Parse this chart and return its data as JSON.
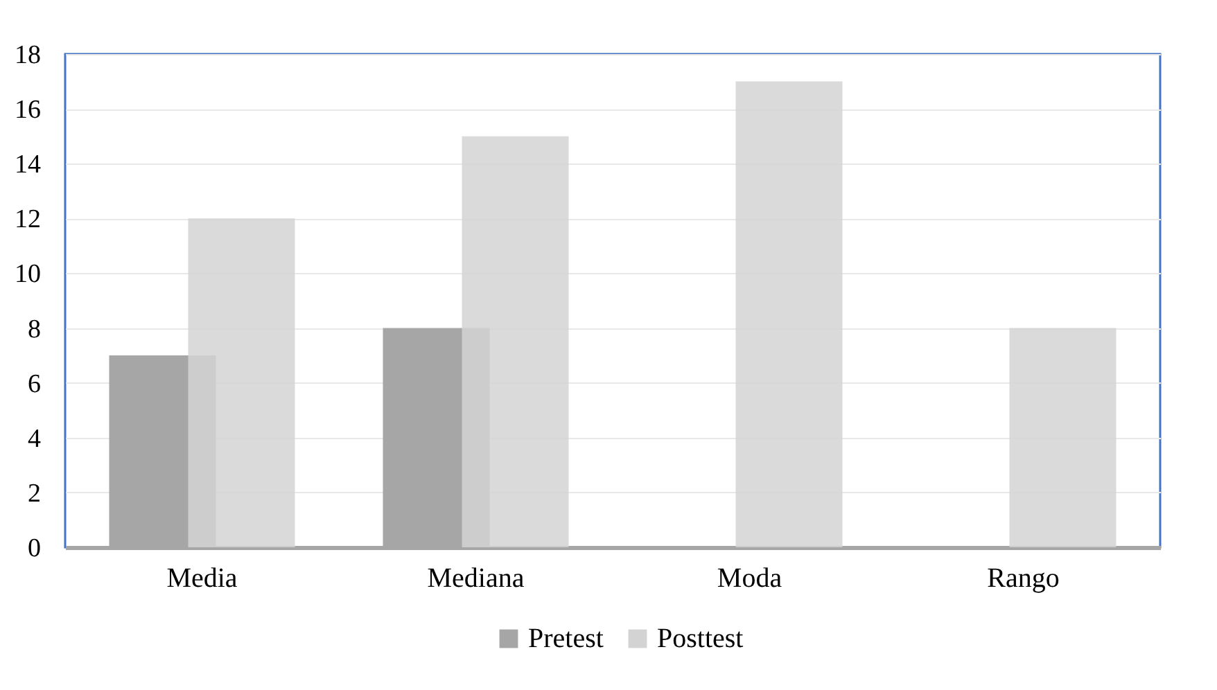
{
  "chart_data": {
    "type": "bar",
    "categories": [
      "Media",
      "Mediana",
      "Moda",
      "Rango"
    ],
    "series": [
      {
        "name": "Pretest",
        "color": "#a6a6a6",
        "values": [
          7,
          8,
          0,
          0
        ]
      },
      {
        "name": "Posttest",
        "color": "#d3d3d3",
        "values": [
          12,
          15,
          17,
          8
        ]
      }
    ],
    "ylim": [
      0,
      18
    ],
    "yticks": [
      0,
      2,
      4,
      6,
      8,
      10,
      12,
      14,
      16,
      18
    ],
    "grid": "y",
    "legend": "bottom"
  }
}
